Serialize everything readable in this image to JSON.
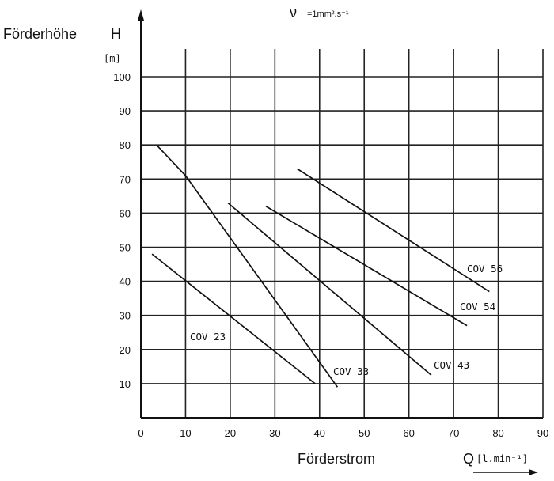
{
  "chart_data": {
    "type": "line",
    "title": "",
    "annotation_top": "=1mm².s⁻¹",
    "annotation_symbol": "ν",
    "ylabel": "Förderhöhe",
    "ysymbol": "H",
    "yunit": "[m]",
    "xlabel": "Förderstrom",
    "xsymbol": "Q",
    "xunit": "[l.min⁻¹]",
    "xlim": [
      0,
      90
    ],
    "ylim": [
      0,
      110
    ],
    "xticks": [
      0,
      10,
      20,
      30,
      40,
      50,
      60,
      70,
      80,
      90
    ],
    "yticks": [
      10,
      20,
      30,
      40,
      50,
      60,
      70,
      80,
      90,
      100
    ],
    "xtick_labels": [
      "0",
      "10",
      "20",
      "30",
      "40",
      "50",
      "60",
      "70",
      "80",
      "90"
    ],
    "ytick_labels": [
      "10",
      "20",
      "30",
      "40",
      "50",
      "60",
      "70",
      "80",
      "90",
      "100"
    ],
    "grid": true,
    "series": [
      {
        "name": "COV 23",
        "x": [
          2.5,
          39
        ],
        "y": [
          48,
          10
        ]
      },
      {
        "name": "COV 33",
        "x": [
          3.5,
          10,
          44
        ],
        "y": [
          80,
          71,
          9
        ]
      },
      {
        "name": "COV 43",
        "x": [
          19.5,
          65
        ],
        "y": [
          63,
          12.5
        ]
      },
      {
        "name": "COV 54",
        "x": [
          28,
          73
        ],
        "y": [
          62,
          27
        ]
      },
      {
        "name": "COV 56",
        "x": [
          35,
          78
        ],
        "y": [
          73,
          37
        ]
      }
    ]
  }
}
